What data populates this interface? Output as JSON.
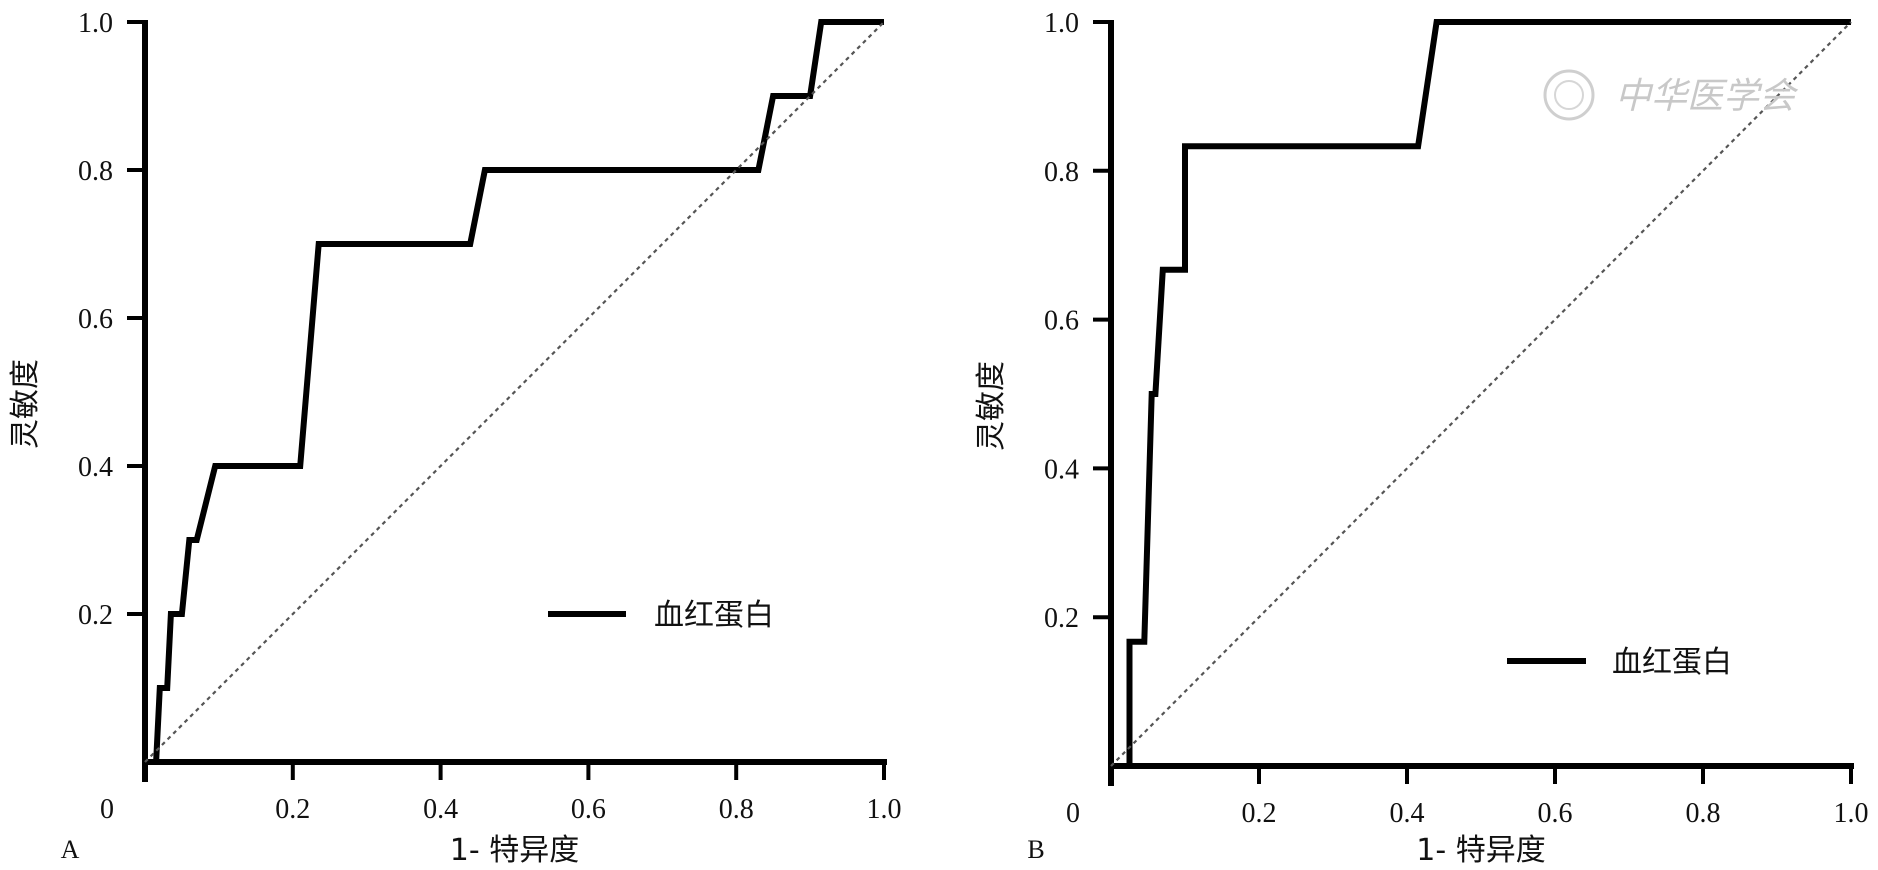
{
  "chart_data": [
    {
      "type": "line",
      "panel_label": "A",
      "title": "",
      "xlabel": "1- 特异度",
      "ylabel": "灵敏度",
      "xlim": [
        0,
        1.0
      ],
      "ylim": [
        0,
        1.0
      ],
      "x_tick_labels": [
        "0",
        "0.2",
        "0.4",
        "0.6",
        "0.8",
        "1.0"
      ],
      "y_tick_labels": [
        "0.2",
        "0.4",
        "0.6",
        "0.8",
        "1.0"
      ],
      "grid": false,
      "legend_position": "bottom-right",
      "series": [
        {
          "name": "血红蛋白",
          "color": "#000000",
          "style": "solid",
          "x": [
            0.0,
            0.015,
            0.02,
            0.03,
            0.035,
            0.05,
            0.06,
            0.07,
            0.095,
            0.105,
            0.21,
            0.235,
            0.44,
            0.46,
            0.83,
            0.85,
            0.9,
            0.915,
            1.0
          ],
          "y": [
            0.0,
            0.0,
            0.1,
            0.1,
            0.2,
            0.2,
            0.3,
            0.3,
            0.4,
            0.4,
            0.4,
            0.7,
            0.7,
            0.8,
            0.8,
            0.9,
            0.9,
            1.0,
            1.0
          ]
        },
        {
          "name": "",
          "color": "#555555",
          "style": "dashed",
          "x": [
            0,
            1.0
          ],
          "y": [
            0,
            1.0
          ]
        }
      ]
    },
    {
      "type": "line",
      "panel_label": "B",
      "title": "",
      "xlabel": "1- 特异度",
      "ylabel": "灵敏度",
      "xlim": [
        0,
        1.0
      ],
      "ylim": [
        0,
        1.0
      ],
      "x_tick_labels": [
        "0",
        "0.2",
        "0.4",
        "0.6",
        "0.8",
        "1.0"
      ],
      "y_tick_labels": [
        "0.2",
        "0.4",
        "0.6",
        "0.8",
        "1.0"
      ],
      "grid": false,
      "legend_position": "bottom-right",
      "series": [
        {
          "name": "血红蛋白",
          "color": "#000000",
          "style": "solid",
          "x": [
            0.0,
            0.025,
            0.025,
            0.045,
            0.055,
            0.06,
            0.07,
            0.085,
            0.1,
            0.1,
            0.415,
            0.44,
            1.0
          ],
          "y": [
            0.0,
            0.0,
            0.167,
            0.167,
            0.5,
            0.5,
            0.667,
            0.667,
            0.667,
            0.833,
            0.833,
            1.0,
            1.0
          ]
        },
        {
          "name": "",
          "color": "#555555",
          "style": "dashed",
          "x": [
            0,
            1.0
          ],
          "y": [
            0,
            1.0
          ]
        }
      ]
    }
  ],
  "watermark": {
    "text": "中华医学会"
  }
}
